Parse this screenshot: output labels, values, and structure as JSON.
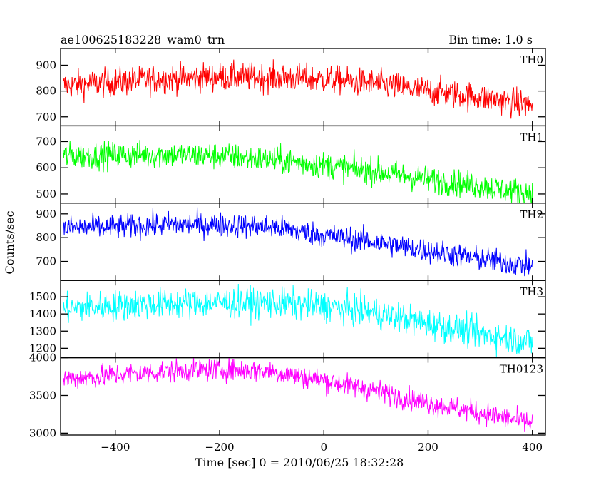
{
  "header": {
    "title": "ae100625183228_wam0_trn",
    "bin_time": "Bin time: 1.0 s"
  },
  "axes": {
    "xlabel": "Time [sec] 0 = 2010/06/25 18:32:28",
    "ylabel": "Counts/sec"
  },
  "chart_data": {
    "type": "line",
    "title": "ae100625183228_wam0_trn",
    "xlabel": "Time [sec] 0 = 2010/06/25 18:32:28",
    "ylabel": "Counts/sec",
    "xlim": [
      -505,
      425
    ],
    "x_ticks": [
      -400,
      -200,
      0,
      200,
      400
    ],
    "x_tick_labels": [
      "−400",
      "−200",
      "0",
      "200",
      "400"
    ],
    "x_start": -500,
    "x_end": 400,
    "bin_time": 1.0,
    "grid": false,
    "legend": "none",
    "series": [
      {
        "name": "TH0",
        "color": "#ff0000",
        "ylim": [
          665,
          965
        ],
        "y_ticks": [
          700,
          800,
          900
        ],
        "trend": [
          [
            -500,
            820
          ],
          [
            -400,
            835
          ],
          [
            -300,
            848
          ],
          [
            -200,
            855
          ],
          [
            -100,
            852
          ],
          [
            0,
            845
          ],
          [
            100,
            828
          ],
          [
            200,
            800
          ],
          [
            300,
            775
          ],
          [
            400,
            745
          ]
        ],
        "noise": 28
      },
      {
        "name": "TH1",
        "color": "#00ff00",
        "ylim": [
          465,
          760
        ],
        "y_ticks": [
          500,
          600,
          700
        ],
        "trend": [
          [
            -500,
            645
          ],
          [
            -400,
            648
          ],
          [
            -300,
            650
          ],
          [
            -200,
            645
          ],
          [
            -100,
            630
          ],
          [
            0,
            610
          ],
          [
            100,
            585
          ],
          [
            200,
            555
          ],
          [
            300,
            530
          ],
          [
            400,
            500
          ]
        ],
        "noise": 26
      },
      {
        "name": "TH2",
        "color": "#0000ff",
        "ylim": [
          620,
          945
        ],
        "y_ticks": [
          700,
          800,
          900
        ],
        "trend": [
          [
            -500,
            840
          ],
          [
            -400,
            845
          ],
          [
            -300,
            855
          ],
          [
            -200,
            855
          ],
          [
            -100,
            845
          ],
          [
            0,
            810
          ],
          [
            100,
            780
          ],
          [
            200,
            745
          ],
          [
            300,
            710
          ],
          [
            400,
            680
          ]
        ],
        "noise": 26
      },
      {
        "name": "TH3",
        "color": "#00ffff",
        "ylim": [
          1145,
          1595
        ],
        "y_ticks": [
          1200,
          1300,
          1400,
          1500
        ],
        "trend": [
          [
            -500,
            1430
          ],
          [
            -400,
            1450
          ],
          [
            -300,
            1460
          ],
          [
            -200,
            1465
          ],
          [
            -100,
            1465
          ],
          [
            0,
            1445
          ],
          [
            100,
            1405
          ],
          [
            200,
            1345
          ],
          [
            300,
            1285
          ],
          [
            400,
            1235
          ]
        ],
        "noise": 45
      },
      {
        "name": "TH0123",
        "color": "#ff00ff",
        "ylim": [
          2975,
          4000
        ],
        "y_ticks": [
          3000,
          3500,
          4000
        ],
        "trend": [
          [
            -500,
            3720
          ],
          [
            -400,
            3770
          ],
          [
            -300,
            3820
          ],
          [
            -200,
            3845
          ],
          [
            -100,
            3820
          ],
          [
            0,
            3700
          ],
          [
            100,
            3560
          ],
          [
            200,
            3400
          ],
          [
            300,
            3270
          ],
          [
            400,
            3130
          ]
        ],
        "noise": 75
      }
    ]
  }
}
